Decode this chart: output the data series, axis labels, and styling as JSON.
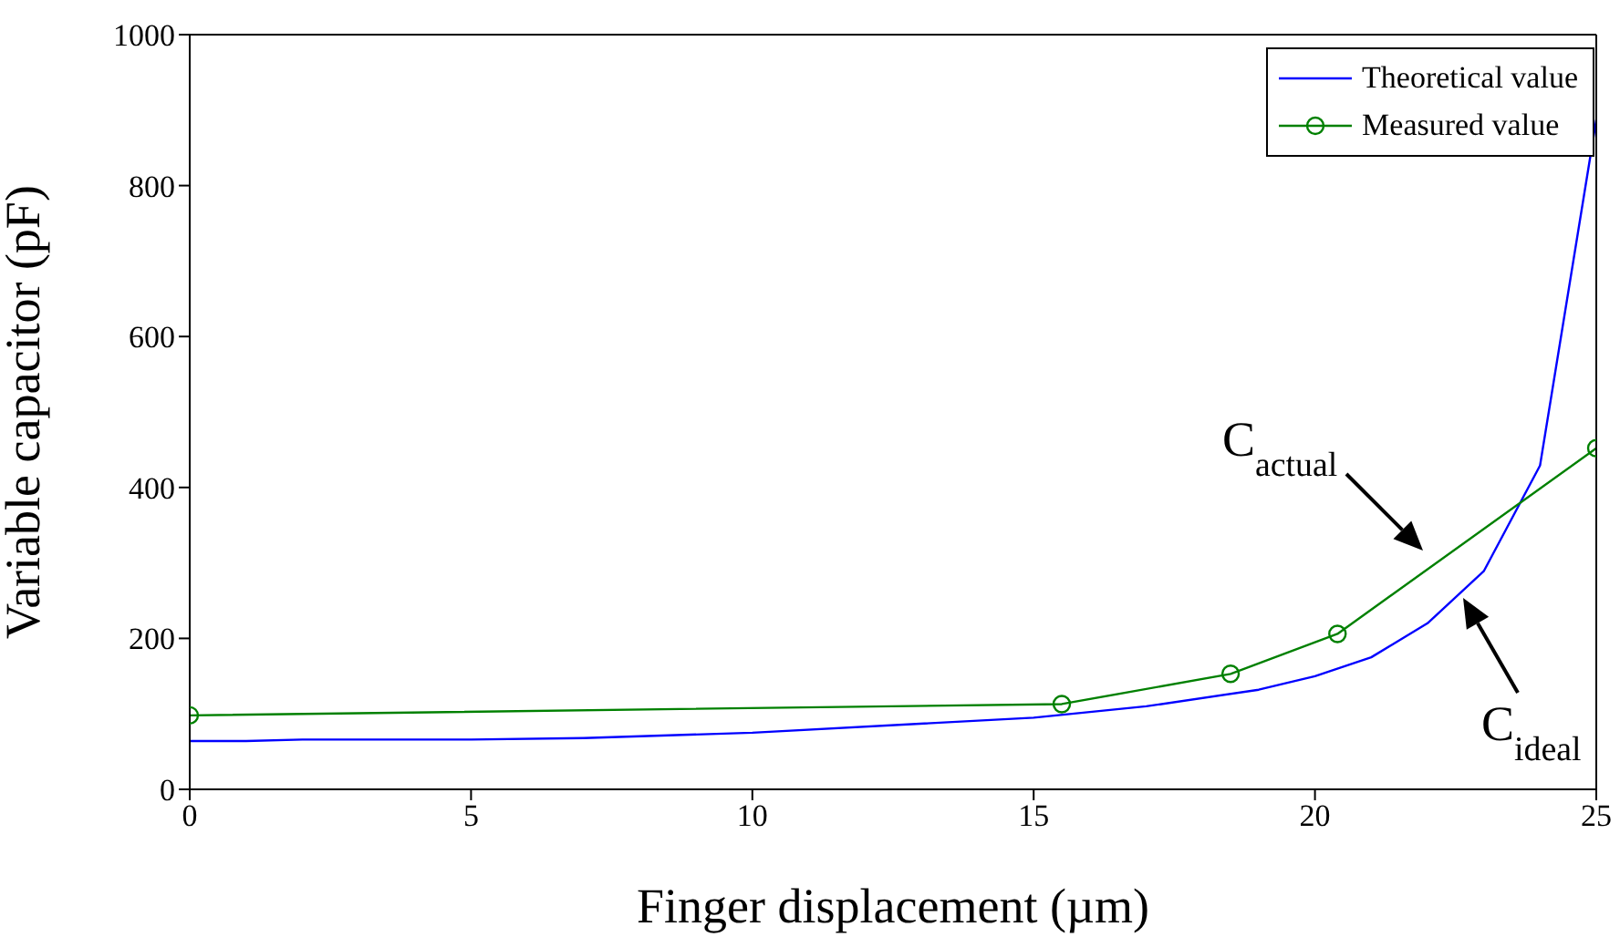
{
  "chart_data": {
    "type": "line",
    "xlabel": "Finger displacement (µm)",
    "ylabel": "Variable capacitor (pF)",
    "xlim": [
      0,
      25
    ],
    "xticks": [
      0,
      5,
      10,
      15,
      20,
      25
    ],
    "ylim": [
      0,
      1000
    ],
    "yticks": [
      0,
      200,
      400,
      600,
      800,
      1000
    ],
    "legend": "top right",
    "series": [
      {
        "name": "Theoretical value",
        "color": "#0000ff",
        "marker": "none",
        "x": [
          0,
          1,
          2,
          5,
          7,
          10,
          15,
          17,
          19,
          20,
          21,
          22,
          23,
          24,
          25
        ],
        "values": [
          64,
          64,
          66,
          66,
          68,
          75,
          95,
          110,
          132,
          150,
          175,
          220,
          289,
          429,
          887
        ]
      },
      {
        "name": "Measured value",
        "color": "#008000",
        "marker": "circle",
        "x": [
          0,
          15.5,
          18.5,
          20.4,
          25
        ],
        "values": [
          98,
          113,
          153,
          206,
          452
        ]
      }
    ],
    "annotations": [
      "C$_{actual}$",
      "C$_{ideal}$"
    ]
  }
}
